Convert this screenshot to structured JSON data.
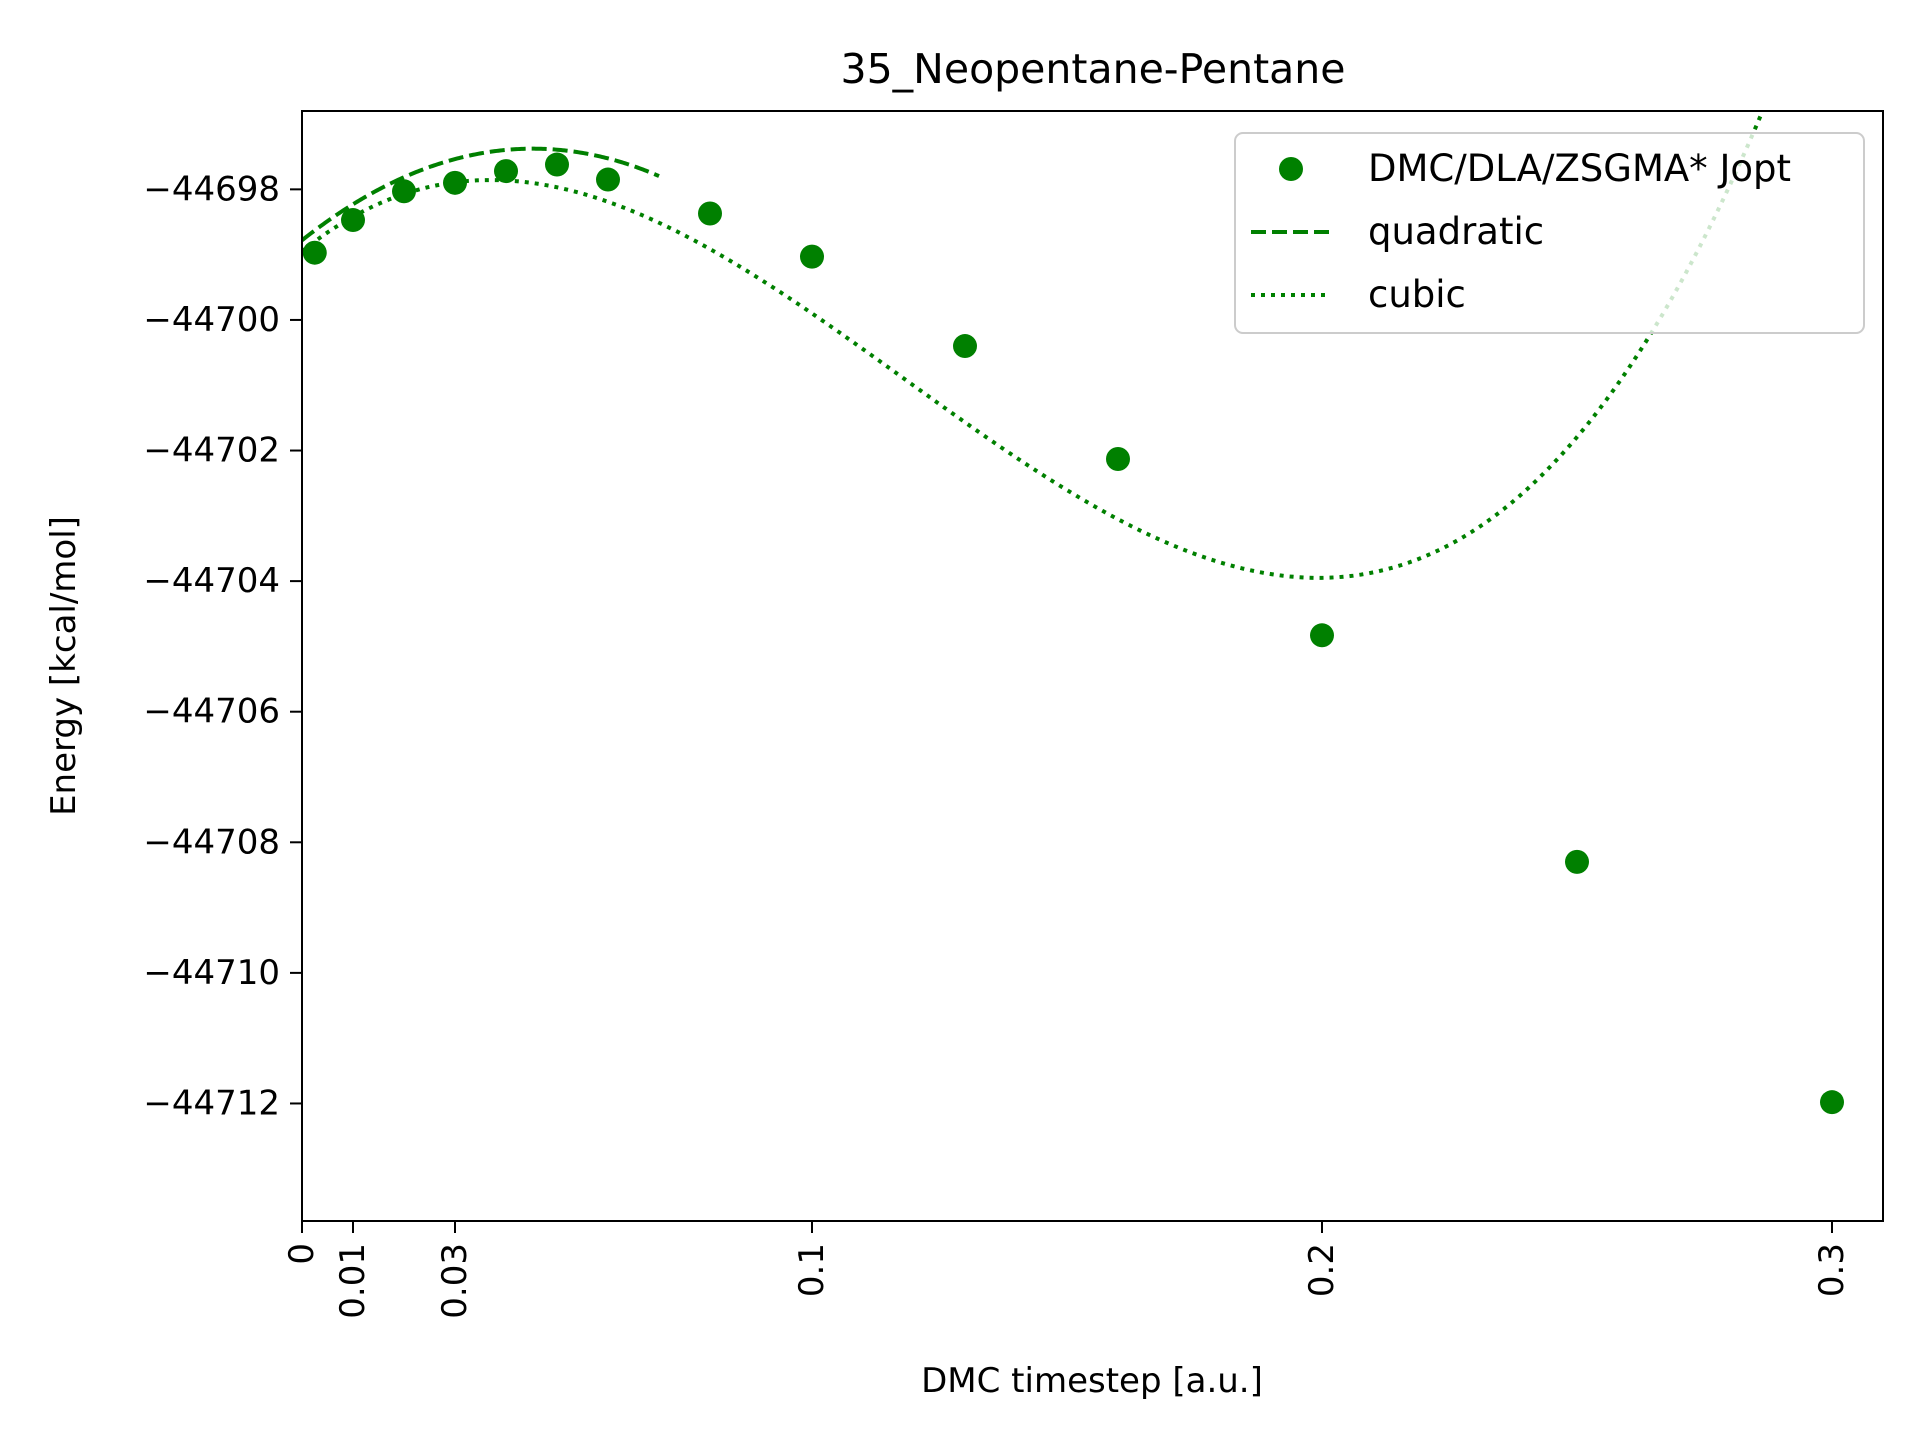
{
  "chart_data": {
    "type": "scatter",
    "title": "35_Neopentane-Pentane",
    "xlabel": "DMC timestep [a.u.]",
    "ylabel": "Energy [kcal/mol]",
    "xlim": [
      0,
      0.31
    ],
    "ylim": [
      -44713.8,
      -44696.8
    ],
    "xticks": [
      {
        "value": 0,
        "label": "0"
      },
      {
        "value": 0.01,
        "label": "0.01"
      },
      {
        "value": 0.03,
        "label": "0.03"
      },
      {
        "value": 0.1,
        "label": "0.1"
      },
      {
        "value": 0.2,
        "label": "0.2"
      },
      {
        "value": 0.3,
        "label": "0.3"
      }
    ],
    "yticks": [
      {
        "value": -44698,
        "label": "−44698"
      },
      {
        "value": -44700,
        "label": "−44700"
      },
      {
        "value": -44702,
        "label": "−44702"
      },
      {
        "value": -44704,
        "label": "−44704"
      },
      {
        "value": -44706,
        "label": "−44706"
      },
      {
        "value": -44708,
        "label": "−44708"
      },
      {
        "value": -44710,
        "label": "−44710"
      },
      {
        "value": -44712,
        "label": "−44712"
      }
    ],
    "grid": false,
    "legend_position": "top-right",
    "color": "#008000",
    "series": [
      {
        "name": "DMC/DLA/ZSGMA* Jopt",
        "style": "markers",
        "x": [
          0.0025,
          0.01,
          0.02,
          0.03,
          0.04,
          0.05,
          0.06,
          0.08,
          0.1,
          0.13,
          0.16,
          0.2,
          0.25,
          0.3
        ],
        "y": [
          -44698.97,
          -44698.47,
          -44698.03,
          -44697.9,
          -44697.72,
          -44697.62,
          -44697.85,
          -44698.37,
          -44699.03,
          -44700.4,
          -44702.13,
          -44704.83,
          -44708.3,
          -44711.98
        ]
      },
      {
        "name": "quadratic",
        "style": "dashed",
        "fit_range": [
          0,
          0.07
        ],
        "fit_coefficients": [
          -44698.78,
          62.0,
          -685.0
        ]
      },
      {
        "name": "cubic",
        "style": "dotted",
        "fit_range": [
          0,
          0.31
        ],
        "fit_coefficients": [
          -44698.95,
          63.0,
          -1010.0,
          2850.0
        ]
      }
    ]
  }
}
